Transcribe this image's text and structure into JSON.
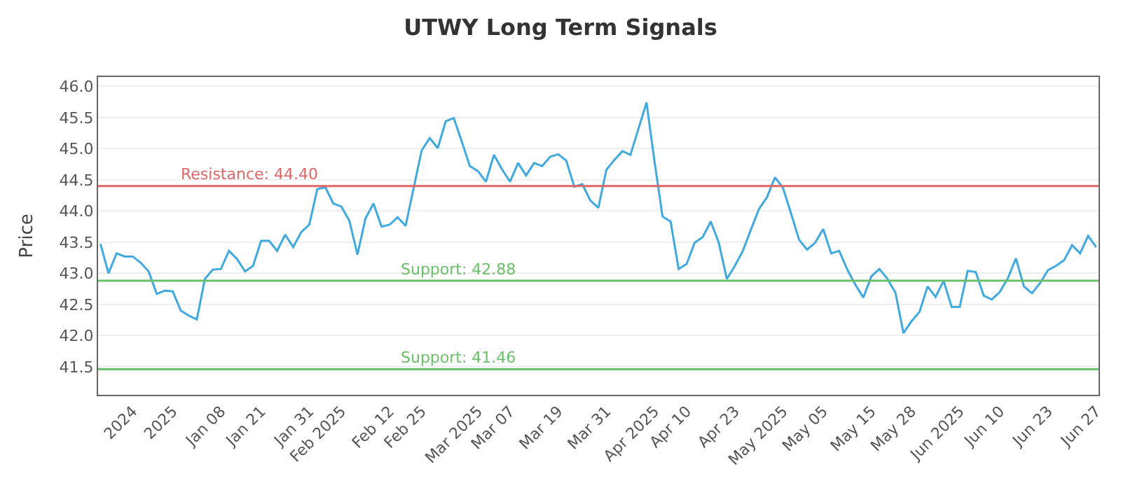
{
  "chart_data": {
    "type": "line",
    "title": "UTWY Long Term Signals",
    "ylabel": "Price",
    "categories": [
      null,
      null,
      null,
      null,
      "2024",
      null,
      null,
      null,
      null,
      "2025",
      null,
      null,
      null,
      null,
      null,
      "Jan 08",
      null,
      null,
      null,
      null,
      "Jan 21",
      null,
      null,
      null,
      null,
      null,
      "Jan 31",
      null,
      null,
      null,
      "Feb 2025",
      null,
      null,
      null,
      null,
      null,
      "Feb 12",
      null,
      null,
      null,
      "Feb 25",
      null,
      null,
      null,
      null,
      null,
      null,
      "Mar 2025",
      null,
      null,
      null,
      "Mar 07",
      null,
      null,
      null,
      null,
      null,
      "Mar 19",
      null,
      null,
      null,
      null,
      null,
      "Mar 31",
      null,
      null,
      null,
      null,
      null,
      "Apr 2025",
      null,
      null,
      null,
      "Apr 10",
      null,
      null,
      null,
      null,
      null,
      "Apr 23",
      null,
      null,
      null,
      null,
      null,
      "May 2025",
      null,
      null,
      null,
      null,
      "May 05",
      null,
      null,
      null,
      null,
      null,
      "May 15",
      null,
      null,
      null,
      null,
      "May 28",
      null,
      null,
      null,
      null,
      null,
      "Jun 2025",
      null,
      null,
      null,
      null,
      "Jun 10",
      null,
      null,
      null,
      null,
      null,
      "Jun 23",
      null,
      null,
      null,
      null,
      null,
      "Jun 27"
    ],
    "series": [
      {
        "color": "#3fa9e0",
        "values": [
          43.47,
          43.0,
          43.32,
          43.27,
          43.27,
          43.17,
          43.03,
          42.67,
          42.72,
          42.71,
          42.4,
          42.32,
          42.26,
          42.91,
          43.06,
          43.07,
          43.36,
          43.23,
          43.03,
          43.12,
          43.52,
          43.52,
          43.36,
          43.62,
          43.42,
          43.66,
          43.78,
          44.35,
          44.38,
          44.12,
          44.07,
          43.84,
          43.3,
          43.88,
          44.12,
          43.75,
          43.78,
          43.9,
          43.76,
          44.37,
          44.97,
          45.17,
          45.01,
          45.44,
          45.49,
          45.11,
          44.72,
          44.64,
          44.47,
          44.9,
          44.67,
          44.47,
          44.77,
          44.57,
          44.77,
          44.72,
          44.87,
          44.91,
          44.81,
          44.39,
          44.43,
          44.17,
          44.05,
          44.66,
          44.82,
          44.96,
          44.9,
          45.32,
          45.74,
          44.79,
          43.91,
          43.83,
          43.07,
          43.15,
          43.49,
          43.58,
          43.83,
          43.49,
          42.91,
          43.12,
          43.36,
          43.7,
          44.03,
          44.22,
          44.54,
          44.37,
          43.96,
          43.54,
          43.38,
          43.49,
          43.71,
          43.32,
          43.36,
          43.06,
          42.82,
          42.61,
          42.95,
          43.07,
          42.91,
          42.69,
          42.04,
          42.23,
          42.38,
          42.79,
          42.62,
          42.88,
          42.46,
          42.46,
          43.04,
          43.02,
          42.64,
          42.58,
          42.7,
          42.92,
          43.24,
          42.79,
          42.68,
          42.84,
          43.05,
          43.12,
          43.21,
          43.45,
          43.32,
          43.6,
          43.42
        ]
      }
    ],
    "ylim": [
      41.05,
      46.15
    ],
    "yticks": [
      {
        "value": 41.5,
        "label": "41.5"
      },
      {
        "value": 42,
        "label": "42.0"
      },
      {
        "value": 42.5,
        "label": "42.5"
      },
      {
        "value": 43,
        "label": "43.0"
      },
      {
        "value": 43.5,
        "label": "43.5"
      },
      {
        "value": 44,
        "label": "44.0"
      },
      {
        "value": 44.5,
        "label": "44.5"
      },
      {
        "value": 45,
        "label": "45.0"
      },
      {
        "value": 45.5,
        "label": "45.5"
      },
      {
        "value": 46,
        "label": "46.0"
      }
    ],
    "grid": "y",
    "marker": "none",
    "line_style": "solid",
    "ref_lines": [
      {
        "axis": "y",
        "value": 44.4,
        "label": "Resistance: 44.40",
        "color": "#e06666"
      },
      {
        "axis": "y",
        "value": 42.88,
        "label": "Support: 42.88",
        "color": "#6abf69"
      },
      {
        "axis": "y",
        "value": 41.46,
        "label": "Support: 41.46",
        "color": "#6abf69"
      }
    ]
  }
}
